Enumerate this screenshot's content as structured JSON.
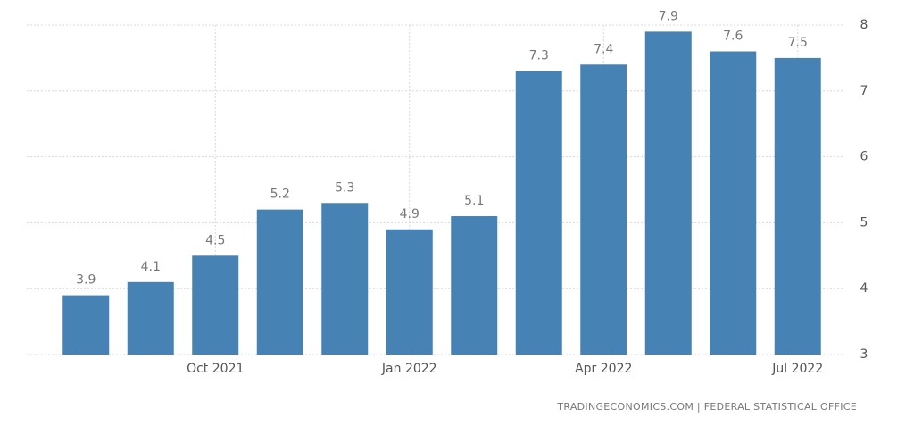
{
  "chart_data": {
    "type": "bar",
    "categories": [
      null,
      null,
      "Oct 2021",
      null,
      null,
      "Jan 2022",
      null,
      null,
      "Apr 2022",
      null,
      null,
      "Jul 2022"
    ],
    "values": [
      3.9,
      4.1,
      4.5,
      5.2,
      5.3,
      4.9,
      5.1,
      7.3,
      7.4,
      7.9,
      7.6,
      7.5
    ],
    "color": "#4682b4",
    "ylim": [
      3,
      8
    ],
    "yticks": [
      3,
      4,
      5,
      6,
      7,
      8
    ],
    "grid": true,
    "source": "TRADINGECONOMICS.COM | FEDERAL STATISTICAL OFFICE"
  }
}
